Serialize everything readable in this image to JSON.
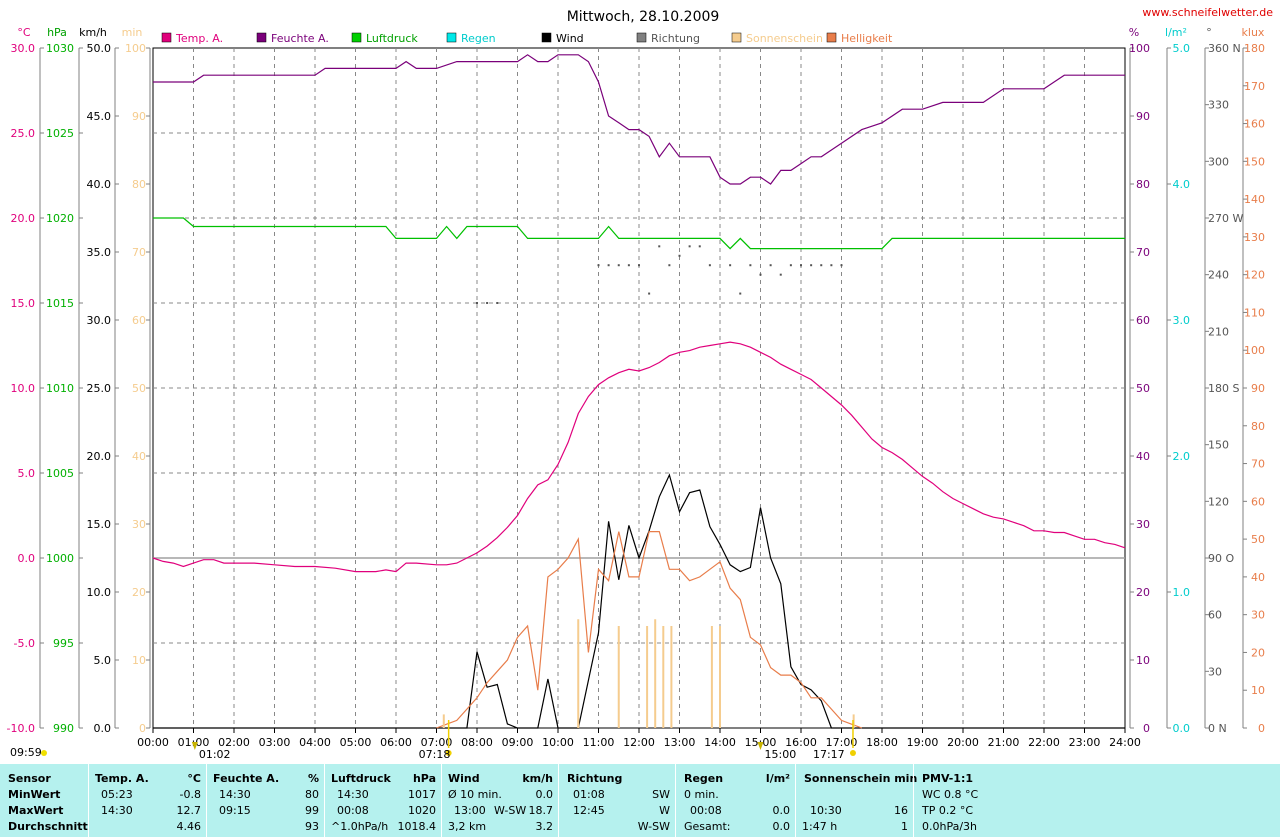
{
  "chart_data": {
    "type": "line",
    "title": "Mittwoch, 28.10.2009",
    "watermark": "www.schneifelwetter.de",
    "grid": true,
    "x_range": [
      "00:00",
      "24:00"
    ],
    "x_ticks": [
      "00:00",
      "01:00",
      "02:00",
      "03:00",
      "04:00",
      "05:00",
      "06:00",
      "07:00",
      "08:00",
      "09:00",
      "10:00",
      "11:00",
      "12:00",
      "13:00",
      "14:00",
      "15:00",
      "16:00",
      "17:00",
      "18:00",
      "19:00",
      "20:00",
      "21:00",
      "22:00",
      "23:00",
      "24:00"
    ],
    "legend": [
      "Temp. A.",
      "Feuchte A.",
      "Luftdruck",
      "Regen",
      "Wind",
      "Richtung",
      "Sonnenschein",
      "Helligkeit"
    ],
    "axes": {
      "temp": {
        "unit": "°C",
        "min": -10,
        "max": 30,
        "ticks": [
          "30.0",
          "25.0",
          "20.0",
          "15.0",
          "10.0",
          "5.0",
          "0.0",
          "-5.0",
          "-10.0"
        ],
        "color": "#e0007c"
      },
      "pressure": {
        "unit": "hPa",
        "min": 990,
        "max": 1030,
        "ticks": [
          "1030",
          "1025",
          "1020",
          "1015",
          "1010",
          "1005",
          "1000",
          "995",
          "990"
        ],
        "color": "#00b000"
      },
      "wind": {
        "unit": "km/h",
        "min": 0,
        "max": 50,
        "ticks": [
          "50.0",
          "45.0",
          "40.0",
          "35.0",
          "30.0",
          "25.0",
          "20.0",
          "15.0",
          "10.0",
          "5.0",
          "0.0"
        ],
        "color": "#000000"
      },
      "sun_min": {
        "unit": "min",
        "min": 0,
        "max": 100,
        "ticks": [
          "100",
          "90",
          "80",
          "70",
          "60",
          "50",
          "40",
          "30",
          "20",
          "10",
          "0"
        ],
        "color": "#f5cc8e"
      },
      "humidity": {
        "unit": "%",
        "min": 0,
        "max": 100,
        "ticks": [
          "100",
          "90",
          "80",
          "70",
          "60",
          "50",
          "40",
          "30",
          "20",
          "10",
          "0"
        ],
        "color": "#7a007a"
      },
      "rain": {
        "unit": "l/m²",
        "min": 0,
        "max": 5,
        "ticks": [
          "5.0",
          "4.0",
          "3.0",
          "2.0",
          "1.0",
          "0.0"
        ],
        "color": "#00cccc"
      },
      "direction": {
        "unit": "°",
        "min": 0,
        "max": 360,
        "ticks": [
          "360 N",
          "330",
          "300",
          "270 W",
          "240",
          "210",
          "180 S",
          "150",
          "120",
          "90 O",
          "60",
          "30",
          "0 N"
        ],
        "color": "#555555"
      },
      "brightness": {
        "unit": "klux",
        "min": 0,
        "max": 180,
        "ticks": [
          "180",
          "170",
          "160",
          "150",
          "140",
          "130",
          "120",
          "110",
          "100",
          "90",
          "80",
          "70",
          "60",
          "50",
          "40",
          "30",
          "20",
          "10",
          "0"
        ],
        "color": "#e87d4a"
      }
    },
    "markers": {
      "time_left": "09:59",
      "moon": "01:02",
      "sunrise": "07:18",
      "moon2": "15:00",
      "sunset": "17:17"
    },
    "series": [
      {
        "name": "Temp. A.",
        "axis": "temp",
        "color": "#e0007c",
        "x": [
          0,
          0.25,
          0.5,
          0.75,
          1,
          1.25,
          1.5,
          1.75,
          2,
          2.5,
          3,
          3.5,
          4,
          4.5,
          5,
          5.25,
          5.5,
          5.75,
          6,
          6.25,
          6.5,
          7,
          7.25,
          7.5,
          8,
          8.25,
          8.5,
          8.75,
          9,
          9.25,
          9.5,
          9.75,
          10,
          10.25,
          10.5,
          10.75,
          11,
          11.25,
          11.5,
          11.75,
          12,
          12.25,
          12.5,
          12.75,
          13,
          13.25,
          13.5,
          13.75,
          14,
          14.25,
          14.5,
          14.75,
          15,
          15.25,
          15.5,
          15.75,
          16,
          16.25,
          16.5,
          16.75,
          17,
          17.25,
          17.5,
          17.75,
          18,
          18.25,
          18.5,
          18.75,
          19,
          19.25,
          19.5,
          19.75,
          20,
          20.25,
          20.5,
          20.75,
          21,
          21.25,
          21.5,
          21.75,
          22,
          22.25,
          22.5,
          22.75,
          23,
          23.25,
          23.5,
          23.75,
          24
        ],
        "y": [
          0.0,
          -0.2,
          -0.3,
          -0.5,
          -0.3,
          -0.1,
          -0.1,
          -0.3,
          -0.3,
          -0.3,
          -0.4,
          -0.5,
          -0.5,
          -0.6,
          -0.8,
          -0.8,
          -0.8,
          -0.7,
          -0.8,
          -0.3,
          -0.3,
          -0.4,
          -0.4,
          -0.3,
          0.3,
          0.7,
          1.2,
          1.8,
          2.5,
          3.5,
          4.3,
          4.6,
          5.5,
          6.8,
          8.5,
          9.5,
          10.2,
          10.6,
          10.9,
          11.1,
          11.0,
          11.2,
          11.5,
          11.9,
          12.1,
          12.2,
          12.4,
          12.5,
          12.6,
          12.7,
          12.6,
          12.4,
          12.1,
          11.8,
          11.4,
          11.1,
          10.8,
          10.5,
          10.0,
          9.5,
          9.0,
          8.4,
          7.7,
          7.0,
          6.5,
          6.2,
          5.8,
          5.3,
          4.8,
          4.4,
          3.9,
          3.5,
          3.2,
          2.9,
          2.6,
          2.4,
          2.3,
          2.1,
          1.9,
          1.6,
          1.6,
          1.5,
          1.5,
          1.3,
          1.1,
          1.1,
          0.9,
          0.8,
          0.6
        ]
      },
      {
        "name": "Feuchte A.",
        "axis": "humidity",
        "color": "#7a007a",
        "x": [
          0,
          0.5,
          1,
          1.25,
          1.5,
          2,
          2.5,
          3,
          3.5,
          4,
          4.25,
          4.5,
          5,
          5.5,
          6,
          6.25,
          6.5,
          6.75,
          7,
          7.5,
          8,
          8.5,
          9,
          9.25,
          9.5,
          9.75,
          10,
          10.5,
          10.75,
          11,
          11.25,
          11.5,
          11.75,
          12,
          12.25,
          12.5,
          12.75,
          13,
          13.25,
          13.5,
          13.75,
          14,
          14.25,
          14.5,
          14.75,
          15,
          15.25,
          15.5,
          15.75,
          16,
          16.25,
          16.5,
          16.75,
          17,
          17.5,
          18,
          18.5,
          19,
          19.5,
          20,
          20.5,
          21,
          21.5,
          22,
          22.25,
          22.5,
          23,
          23.5,
          24
        ],
        "y": [
          95,
          95,
          95,
          96,
          96,
          96,
          96,
          96,
          96,
          96,
          97,
          97,
          97,
          97,
          97,
          98,
          97,
          97,
          97,
          98,
          98,
          98,
          98,
          99,
          98,
          98,
          99,
          99,
          98,
          95,
          90,
          89,
          88,
          88,
          87,
          84,
          86,
          84,
          84,
          84,
          84,
          81,
          80,
          80,
          81,
          81,
          80,
          82,
          82,
          83,
          84,
          84,
          85,
          86,
          88,
          89,
          91,
          91,
          92,
          92,
          92,
          94,
          94,
          94,
          95,
          96,
          96,
          96,
          96
        ]
      },
      {
        "name": "Luftdruck",
        "axis": "pressure",
        "color": "#00c000",
        "x": [
          0,
          0.75,
          1,
          1.5,
          2,
          3,
          4,
          4.5,
          5,
          5.5,
          5.75,
          6,
          6.5,
          7,
          7.25,
          7.5,
          7.75,
          8,
          8.5,
          9,
          9.25,
          9.5,
          10,
          10.5,
          11,
          11.25,
          11.5,
          11.75,
          12,
          12.5,
          13,
          13.5,
          14,
          14.25,
          14.5,
          14.75,
          15,
          15.25,
          15.5,
          16,
          16.5,
          17,
          17.5,
          18,
          18.25,
          19,
          20,
          21,
          22,
          23,
          24
        ],
        "y": [
          1020,
          1020,
          1019.5,
          1019.5,
          1019.5,
          1019.5,
          1019.5,
          1019.5,
          1019.5,
          1019.5,
          1019.5,
          1018.8,
          1018.8,
          1018.8,
          1019.5,
          1018.8,
          1019.5,
          1019.5,
          1019.5,
          1019.5,
          1018.8,
          1018.8,
          1018.8,
          1018.8,
          1018.8,
          1019.5,
          1018.8,
          1018.8,
          1018.8,
          1018.8,
          1018.8,
          1018.8,
          1018.8,
          1018.2,
          1018.8,
          1018.2,
          1018.2,
          1018.2,
          1018.2,
          1018.2,
          1018.2,
          1018.2,
          1018.2,
          1018.2,
          1018.8,
          1018.8,
          1018.8,
          1018.8,
          1018.8,
          1018.8,
          1018.8
        ]
      },
      {
        "name": "Wind",
        "axis": "wind",
        "color": "#000000",
        "x": [
          0,
          7.5,
          7.75,
          8,
          8.25,
          8.5,
          8.75,
          9,
          9.5,
          9.75,
          10,
          10.25,
          10.5,
          11,
          11.25,
          11.5,
          11.75,
          12,
          12.25,
          12.5,
          12.75,
          13,
          13.25,
          13.5,
          13.75,
          14,
          14.25,
          14.5,
          14.75,
          15,
          15.25,
          15.5,
          15.75,
          16,
          16.25,
          16.5,
          16.75,
          17,
          17.25,
          24
        ],
        "y": [
          0,
          0,
          0,
          5.6,
          3.0,
          3.2,
          0.3,
          0,
          0,
          3.6,
          0,
          0,
          0,
          7.0,
          15.2,
          10.9,
          14.9,
          12.5,
          14.5,
          17.0,
          18.6,
          15.9,
          17.3,
          17.5,
          14.8,
          13.5,
          12.0,
          11.5,
          11.8,
          16.2,
          12.5,
          10.6,
          4.5,
          3.2,
          2.8,
          2.0,
          0,
          0,
          0,
          0
        ]
      },
      {
        "name": "Helligkeit",
        "axis": "brightness",
        "color": "#e87d4a",
        "x": [
          7.0,
          7.25,
          7.5,
          7.75,
          8,
          8.25,
          8.5,
          8.75,
          9,
          9.25,
          9.5,
          9.75,
          10,
          10.25,
          10.5,
          10.75,
          11,
          11.25,
          11.5,
          11.75,
          12,
          12.25,
          12.5,
          12.75,
          13,
          13.25,
          13.5,
          13.75,
          14,
          14.25,
          14.5,
          14.75,
          15,
          15.25,
          15.5,
          15.75,
          16,
          16.25,
          16.5,
          16.75,
          17,
          17.25,
          17.5
        ],
        "y": [
          0,
          1,
          2,
          5,
          8,
          12,
          15,
          18,
          24,
          27,
          10,
          40,
          42,
          45,
          50,
          20,
          42,
          39,
          52,
          40,
          40,
          52,
          52,
          42,
          42,
          39,
          40,
          42,
          44,
          37,
          34,
          24,
          22,
          16,
          14,
          14,
          12,
          8,
          8,
          5,
          2,
          1,
          0
        ]
      },
      {
        "name": "Sonnenschein",
        "axis": "sun_min",
        "color": "#f5cc8e",
        "kind": "bars",
        "x": [
          7.18,
          10.5,
          11.5,
          12.2,
          12.4,
          12.6,
          12.8,
          13.8,
          14.0,
          17.3
        ],
        "y": [
          2,
          16,
          15,
          15,
          16,
          15,
          15,
          15,
          15,
          2
        ]
      },
      {
        "name": "Richtung",
        "axis": "direction",
        "color": "#555555",
        "kind": "dots",
        "x": [
          8.0,
          8.25,
          8.5,
          11.0,
          11.25,
          11.5,
          11.75,
          12.0,
          12.25,
          12.5,
          12.75,
          13.0,
          13.25,
          13.5,
          13.75,
          14.25,
          14.5,
          14.75,
          15.0,
          15.25,
          15.5,
          15.75,
          16.0,
          16.25,
          16.5,
          16.75,
          17.0
        ],
        "y": [
          225,
          225,
          225,
          245,
          245,
          245,
          245,
          245,
          230,
          255,
          245,
          250,
          255,
          255,
          245,
          245,
          230,
          245,
          240,
          245,
          240,
          245,
          245,
          245,
          245,
          245,
          245
        ]
      }
    ]
  },
  "stats": {
    "row_labels": [
      "Sensor",
      "MinWert",
      "MaxWert",
      "Durchschnitt"
    ],
    "temp": {
      "title": "Temp. A.",
      "unit": "°C",
      "min_time": "05:23",
      "min": "-0.8",
      "max_time": "14:30",
      "max": "12.7",
      "avg": "4.46"
    },
    "hum": {
      "title": "Feuchte A.",
      "unit": "%",
      "min_time": "14:30",
      "min": "80",
      "max_time": "09:15",
      "max": "99",
      "avg": "93"
    },
    "press": {
      "title": "Luftdruck",
      "unit": "hPa",
      "min_time": "14:30",
      "min": "1017",
      "max_time": "00:08",
      "max": "1020",
      "trend": "^1.0hPa/h",
      "avg": "1018.4"
    },
    "wind": {
      "title": "Wind",
      "unit": "km/h",
      "r1a": "Ø 10 min.",
      "r1b": "0.0",
      "r2a": "13:00",
      "r2dir": "W-SW",
      "r2b": "18.7",
      "r3a": "3,2 km",
      "r3b": "3.2"
    },
    "dir": {
      "title": "Richtung",
      "r1a": "01:08",
      "r1b": "SW",
      "r2a": "12:45",
      "r2b": "W",
      "r3b": "W-SW"
    },
    "rain": {
      "title": "Regen",
      "unit": "l/m²",
      "r1a": "0 min.",
      "r2a": "00:08",
      "r2b": "0.0",
      "r3a": "Gesamt:",
      "r3b": "0.0"
    },
    "sun": {
      "title": "Sonnenschein min",
      "r2a": "10:30",
      "r2b": "16",
      "r3a": "1:47 h",
      "r3b": "1"
    },
    "pmv": {
      "title": "PMV-1:1",
      "r1": "WC 0.8 °C",
      "r2": "TP 0.2 °C",
      "r3": "0.0hPa/3h"
    }
  }
}
